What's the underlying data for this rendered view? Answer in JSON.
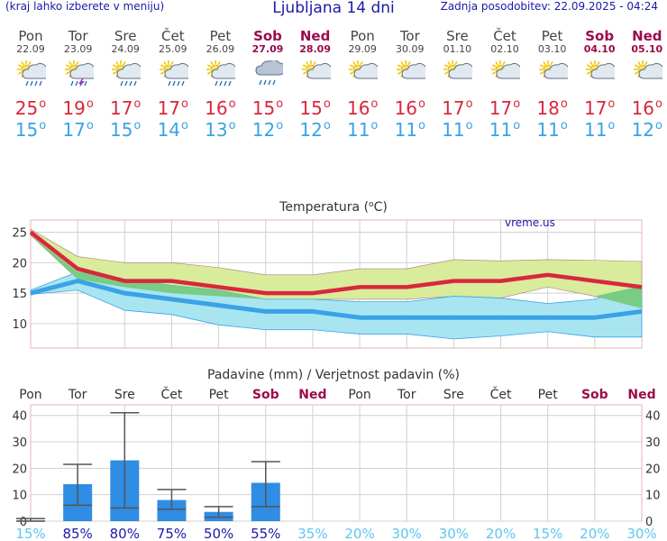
{
  "header": {
    "menu_hint": "(kraj lahko izberete v meniju)",
    "title": "Ljubljana 14 dni",
    "updated": "Zadnja posodobitev: 22.09.2025 - 04:24"
  },
  "days": [
    {
      "name": "Pon",
      "date": "22.09",
      "icon": "sun-cloud-rain-icon",
      "max": "25",
      "min": "15",
      "weekend": false
    },
    {
      "name": "Tor",
      "date": "23.09",
      "icon": "sun-cloud-thunder-icon",
      "max": "19",
      "min": "17",
      "weekend": false
    },
    {
      "name": "Sre",
      "date": "24.09",
      "icon": "sun-cloud-rain-icon",
      "max": "17",
      "min": "15",
      "weekend": false
    },
    {
      "name": "Čet",
      "date": "25.09",
      "icon": "sun-cloud-rain-icon",
      "max": "17",
      "min": "14",
      "weekend": false
    },
    {
      "name": "Pet",
      "date": "26.09",
      "icon": "sun-cloud-rain-icon",
      "max": "16",
      "min": "13",
      "weekend": false
    },
    {
      "name": "Sob",
      "date": "27.09",
      "icon": "cloud-rain-icon",
      "max": "15",
      "min": "12",
      "weekend": true
    },
    {
      "name": "Ned",
      "date": "28.09",
      "icon": "sun-cloud-icon",
      "max": "15",
      "min": "12",
      "weekend": true
    },
    {
      "name": "Pon",
      "date": "29.09",
      "icon": "sun-cloud-icon",
      "max": "16",
      "min": "11",
      "weekend": false
    },
    {
      "name": "Tor",
      "date": "30.09",
      "icon": "sun-cloud-icon",
      "max": "16",
      "min": "11",
      "weekend": false
    },
    {
      "name": "Sre",
      "date": "01.10",
      "icon": "sun-cloud-icon",
      "max": "17",
      "min": "11",
      "weekend": false
    },
    {
      "name": "Čet",
      "date": "02.10",
      "icon": "sun-cloud-icon",
      "max": "17",
      "min": "11",
      "weekend": false
    },
    {
      "name": "Pet",
      "date": "03.10",
      "icon": "sun-cloud-icon",
      "max": "18",
      "min": "11",
      "weekend": false
    },
    {
      "name": "Sob",
      "date": "04.10",
      "icon": "sun-cloud-icon",
      "max": "17",
      "min": "11",
      "weekend": true
    },
    {
      "name": "Ned",
      "date": "05.10",
      "icon": "sun-cloud-icon",
      "max": "16",
      "min": "12",
      "weekend": true
    }
  ],
  "degree_symbol": "o",
  "colors": {
    "max": "#d8283c",
    "min": "#3aa2e6",
    "weekend": "#9b0a4c",
    "max_band": "#d8ec9c",
    "overlap_band": "#78cc84",
    "min_band": "#a4e4f0",
    "bar": "#2f8de4",
    "grid": "#d0d0d0"
  },
  "chart_data": [
    {
      "type": "area",
      "title": "Temperatura (",
      "title_unit": "C)",
      "watermark": "vreme.us",
      "ylim": [
        6,
        27
      ],
      "yticks": [
        "10",
        "15",
        "20",
        "25"
      ],
      "ytick_values": [
        10,
        15,
        20,
        25
      ],
      "series": [
        {
          "name": "max",
          "values": [
            25,
            19,
            17,
            17,
            16,
            15,
            15,
            16,
            16,
            17,
            17,
            18,
            17,
            16
          ]
        },
        {
          "name": "min",
          "values": [
            15,
            17,
            15,
            14,
            13,
            12,
            12,
            11,
            11,
            11,
            11,
            11,
            11,
            12
          ]
        },
        {
          "name": "max_upper",
          "values": [
            25.5,
            21,
            20,
            20,
            19.2,
            18,
            18,
            19,
            19,
            20.5,
            20.3,
            20.5,
            20.4,
            20.2
          ]
        },
        {
          "name": "max_lower",
          "values": [
            24.5,
            17.3,
            16,
            15,
            14.5,
            14,
            14,
            14,
            14,
            14.5,
            14.2,
            16,
            14.5,
            12.5
          ]
        },
        {
          "name": "min_upper",
          "values": [
            15.5,
            18.5,
            17.3,
            16.3,
            15.5,
            14,
            14,
            13.6,
            13.6,
            14.5,
            14.2,
            13.3,
            14,
            16.2
          ]
        },
        {
          "name": "min_lower",
          "values": [
            14.8,
            15.5,
            12.2,
            11.5,
            9.8,
            9,
            9,
            8.3,
            8.3,
            7.5,
            8,
            8.7,
            7.8,
            7.8
          ]
        }
      ]
    },
    {
      "type": "bar",
      "title": "Padavine (mm) / Verjetnost padavin (%)",
      "categories": [
        "Pon",
        "Tor",
        "Sre",
        "Čet",
        "Pet",
        "Sob",
        "Ned",
        "Pon",
        "Tor",
        "Sre",
        "Čet",
        "Pet",
        "Sob",
        "Ned"
      ],
      "ylim": [
        0,
        44
      ],
      "yticks": [
        "0",
        "10",
        "20",
        "30",
        "40"
      ],
      "ytick_values": [
        0,
        10,
        20,
        30,
        40
      ],
      "values": [
        0.3,
        14,
        23,
        8,
        3.5,
        14.5,
        0,
        0,
        0,
        0,
        0,
        0,
        0,
        0
      ],
      "range_low": [
        0,
        6,
        5,
        4.5,
        1.5,
        5.5,
        0,
        0,
        0,
        0,
        0,
        0,
        0,
        0
      ],
      "range_high": [
        1,
        21.5,
        41,
        12,
        5.5,
        22.5,
        0,
        0,
        0,
        0,
        0,
        0,
        0,
        0
      ],
      "probability": [
        "15%",
        "85%",
        "80%",
        "75%",
        "50%",
        "55%",
        "35%",
        "20%",
        "30%",
        "30%",
        "20%",
        "15%",
        "20%",
        "30%"
      ],
      "probability_values": [
        15,
        85,
        80,
        75,
        50,
        55,
        35,
        20,
        30,
        30,
        20,
        15,
        20,
        30
      ]
    }
  ]
}
